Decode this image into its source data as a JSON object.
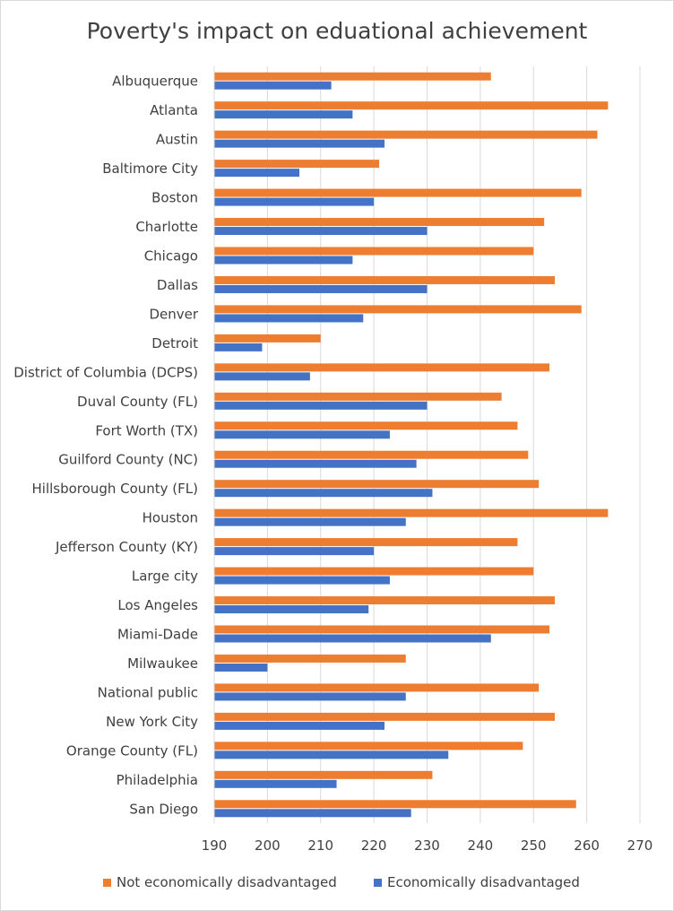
{
  "chart_data": {
    "type": "bar",
    "orientation": "horizontal",
    "title": "Poverty's impact on eduational achievement",
    "categories": [
      "Albuquerque",
      "Atlanta",
      "Austin",
      "Baltimore City",
      "Boston",
      "Charlotte",
      "Chicago",
      "Dallas",
      "Denver",
      "Detroit",
      "District of Columbia (DCPS)",
      "Duval County (FL)",
      "Fort Worth (TX)",
      "Guilford County (NC)",
      "Hillsborough County (FL)",
      "Houston",
      "Jefferson County (KY)",
      "Large city",
      "Los Angeles",
      "Miami-Dade",
      "Milwaukee",
      "National public",
      "New York City",
      "Orange County (FL)",
      "Philadelphia",
      "San Diego"
    ],
    "series": [
      {
        "name": "Not economically disadvantaged",
        "color": "#ed7d31",
        "values": [
          242,
          264,
          262,
          221,
          259,
          252,
          250,
          254,
          259,
          210,
          253,
          244,
          247,
          249,
          251,
          264,
          247,
          250,
          254,
          253,
          226,
          251,
          254,
          248,
          231,
          258
        ]
      },
      {
        "name": "Economically disadvantaged",
        "color": "#4472c4",
        "values": [
          212,
          216,
          222,
          206,
          220,
          230,
          216,
          230,
          218,
          199,
          208,
          230,
          223,
          228,
          231,
          226,
          220,
          223,
          219,
          242,
          200,
          226,
          222,
          234,
          213,
          227
        ]
      }
    ],
    "xlim": [
      190,
      270
    ],
    "xticks": [
      190,
      200,
      210,
      220,
      230,
      240,
      250,
      260,
      270
    ],
    "grid": true,
    "legend": "bottom"
  }
}
